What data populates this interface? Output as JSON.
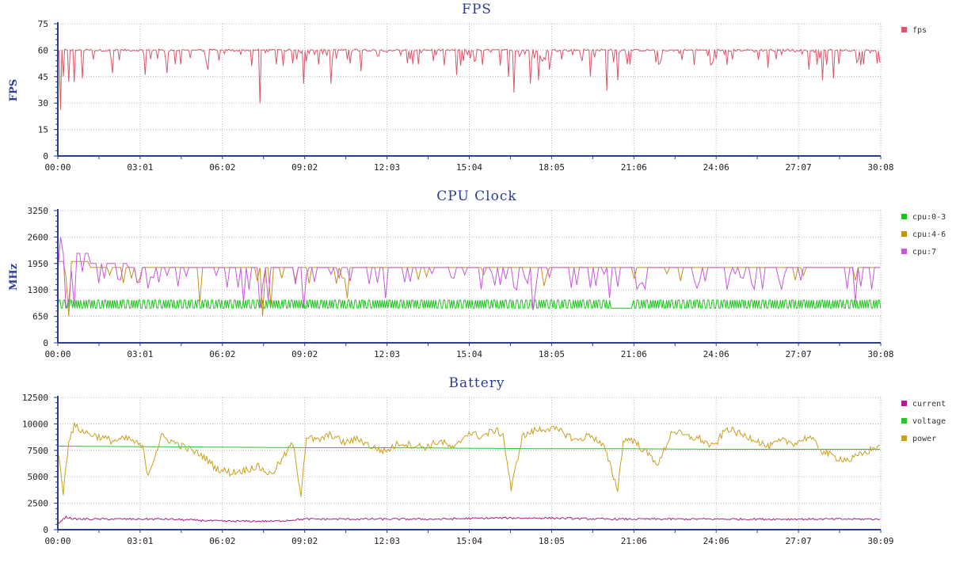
{
  "chart_data": [
    {
      "type": "line",
      "title": "FPS",
      "ylabel": "FPS",
      "xlabel": "",
      "ylim": [
        0,
        75
      ],
      "yticks": [
        "0",
        "15",
        "30",
        "45",
        "60",
        "75"
      ],
      "xticks": [
        "00:00",
        "03:01",
        "06:02",
        "09:02",
        "12:03",
        "15:04",
        "18:05",
        "21:06",
        "24:06",
        "27:07",
        "30:08"
      ],
      "grid": true,
      "legend": "right",
      "series": [
        {
          "name": "fps",
          "color": "#d9566b",
          "baseline": 60,
          "x": [
            0,
            0.1,
            0.2,
            0.4,
            0.6,
            0.9,
            2.0,
            3.2,
            4.0,
            4.5,
            5.5,
            7.4,
            8.0,
            9.0,
            10.0,
            11.1,
            13.0,
            14.6,
            16.5,
            16.7,
            17.3,
            17.6,
            18.0,
            19.5,
            20.1,
            20.5,
            22.0,
            24.0,
            26.0,
            27.5,
            28.0,
            28.4,
            29.5,
            30.1
          ],
          "y": [
            59,
            26,
            45,
            42,
            42,
            44,
            47,
            46,
            47,
            52,
            49,
            30,
            52,
            41,
            41,
            48,
            52,
            46,
            45,
            36,
            41,
            43,
            49,
            45,
            37,
            43,
            52,
            54,
            50,
            49,
            43,
            44,
            52,
            53
          ]
        }
      ]
    },
    {
      "type": "line",
      "title": "CPU Clock",
      "ylabel": "MHz",
      "xlabel": "",
      "ylim": [
        0,
        3250
      ],
      "yticks": [
        "0",
        "650",
        "1300",
        "1950",
        "2600",
        "3250"
      ],
      "xticks": [
        "00:00",
        "03:01",
        "06:02",
        "09:02",
        "12:03",
        "15:04",
        "18:05",
        "21:06",
        "24:06",
        "27:07",
        "30:08"
      ],
      "grid": true,
      "legend": "right",
      "series": [
        {
          "name": "cpu:0-3",
          "color": "#1ec21e",
          "low": 850,
          "high": 1050,
          "gaps": [
            [
              20.2,
              21.0
            ]
          ]
        },
        {
          "name": "cpu:4-6",
          "color": "#c4901a",
          "levels": [
            2000,
            1850
          ],
          "drops": [
            [
              0.4,
              650
            ],
            [
              7.5,
              650
            ],
            [
              5.2,
              1000
            ],
            [
              7.8,
              900
            ],
            [
              10.6,
              1100
            ],
            [
              17.8,
              1400
            ]
          ]
        },
        {
          "name": "cpu:7",
          "color": "#c45ad8",
          "levels": [
            2200,
            1950,
            1850
          ],
          "drops": [
            [
              0.1,
              2600
            ],
            [
              0.3,
              850
            ],
            [
              0.6,
              900
            ],
            [
              6.8,
              1000
            ],
            [
              7.4,
              850
            ],
            [
              7.7,
              1050
            ],
            [
              9.0,
              850
            ],
            [
              12.0,
              1100
            ],
            [
              16.8,
              1300
            ],
            [
              17.4,
              800
            ],
            [
              18.8,
              1350
            ],
            [
              20.2,
              1100
            ],
            [
              29.2,
              1000
            ]
          ]
        }
      ]
    },
    {
      "type": "line",
      "title": "Battery",
      "ylabel": "",
      "xlabel": "",
      "ylim": [
        0,
        12500
      ],
      "yticks": [
        "0",
        "2500",
        "5000",
        "7500",
        "10000",
        "12500"
      ],
      "xticks": [
        "00:00",
        "03:01",
        "06:02",
        "09:02",
        "12:03",
        "15:04",
        "18:05",
        "21:06",
        "24:06",
        "27:07",
        "30:09"
      ],
      "grid": true,
      "legend": "right",
      "series": [
        {
          "name": "current",
          "color": "#b0198f",
          "x": [
            0,
            0.3,
            0.6,
            2,
            4,
            6,
            8,
            9,
            10,
            12,
            14,
            16,
            18,
            20,
            22,
            24,
            26,
            28,
            30.1
          ],
          "y": [
            600,
            1200,
            1000,
            1000,
            1000,
            800,
            800,
            1000,
            1000,
            1000,
            1000,
            1100,
            1100,
            1000,
            1000,
            1000,
            1000,
            1000,
            1000
          ]
        },
        {
          "name": "voltage",
          "color": "#2ec22e",
          "x": [
            0,
            3,
            6,
            9,
            12,
            15,
            18,
            21,
            24,
            27,
            30.1
          ],
          "y": [
            7900,
            7850,
            7800,
            7750,
            7750,
            7700,
            7650,
            7650,
            7600,
            7600,
            7600
          ]
        },
        {
          "name": "power",
          "color": "#c9a022",
          "x": [
            0,
            0.2,
            0.4,
            0.6,
            0.8,
            1.0,
            1.5,
            2.0,
            2.6,
            3.1,
            3.3,
            3.8,
            4.3,
            4.8,
            5.3,
            5.8,
            6.3,
            6.8,
            7.3,
            7.8,
            8.2,
            8.6,
            8.9,
            9.1,
            9.5,
            10.0,
            10.5,
            11.0,
            11.5,
            12.0,
            12.5,
            13.0,
            13.5,
            14.0,
            14.5,
            15.0,
            15.5,
            16.0,
            16.3,
            16.6,
            17.0,
            17.5,
            18.0,
            18.5,
            19.0,
            19.5,
            20.0,
            20.5,
            20.7,
            21.0,
            21.5,
            22.0,
            22.5,
            23.0,
            23.5,
            24.0,
            24.5,
            25.0,
            25.5,
            26.0,
            26.5,
            27.0,
            27.5,
            28.0,
            28.5,
            29.0,
            29.5,
            30.1
          ],
          "y": [
            7500,
            3500,
            8500,
            9800,
            9500,
            9200,
            8800,
            8400,
            8600,
            7800,
            5200,
            8800,
            8200,
            7600,
            7000,
            5800,
            5400,
            5600,
            6000,
            5200,
            6600,
            8200,
            3400,
            8800,
            8400,
            9000,
            8200,
            8600,
            7800,
            7400,
            8200,
            8000,
            7800,
            8400,
            7600,
            9200,
            8800,
            9400,
            9000,
            3800,
            8800,
            9400,
            9600,
            9200,
            8400,
            9000,
            7800,
            3800,
            8400,
            8600,
            7400,
            6200,
            9400,
            8800,
            8600,
            7800,
            9600,
            9000,
            8600,
            7800,
            8400,
            8200,
            8800,
            7400,
            6800,
            6600,
            7200,
            8000
          ]
        }
      ]
    }
  ]
}
